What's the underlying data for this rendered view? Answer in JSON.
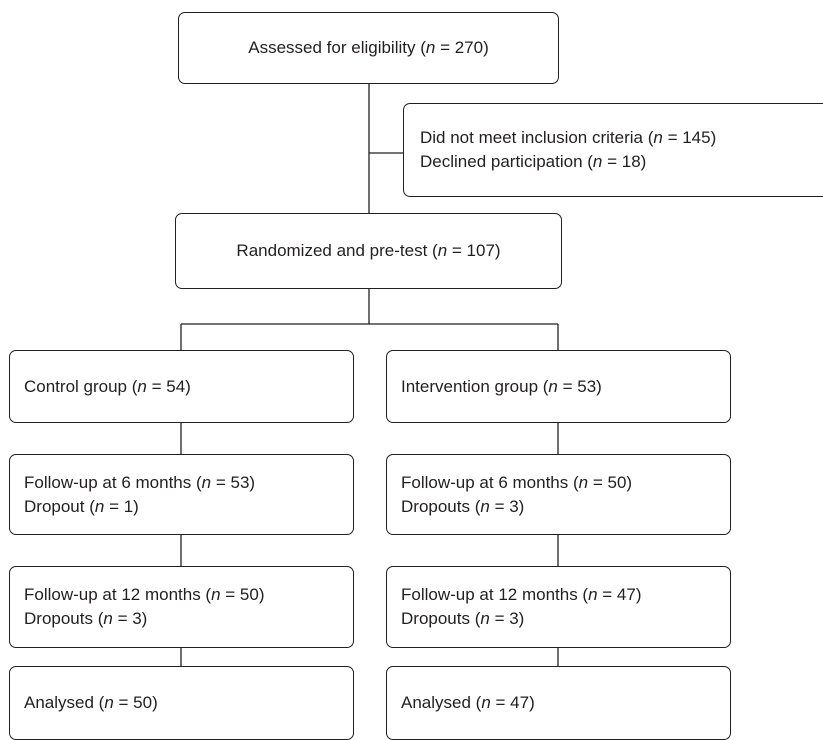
{
  "flowchart": {
    "eligibility": {
      "prefix": "Assessed for eligibility (",
      "n_label": "n",
      "suffix": " = 270)"
    },
    "exclusions": {
      "line1": {
        "prefix": "Did not meet inclusion criteria (",
        "n_label": "n",
        "suffix": " = 145)"
      },
      "line2": {
        "prefix": "Declined participation (",
        "n_label": "n",
        "suffix": " = 18)"
      }
    },
    "randomized": {
      "prefix": "Randomized and pre-test (",
      "n_label": "n",
      "suffix": " = 107)"
    },
    "control": {
      "group": {
        "prefix": "Control group (",
        "n_label": "n",
        "suffix": " = 54)"
      },
      "fu6_line1": {
        "prefix": "Follow-up at 6 months (",
        "n_label": "n",
        "suffix": " = 53)"
      },
      "fu6_line2": {
        "prefix": "Dropout (",
        "n_label": "n",
        "suffix": " = 1)"
      },
      "fu12_line1": {
        "prefix": "Follow-up at 12 months (",
        "n_label": "n",
        "suffix": " = 50)"
      },
      "fu12_line2": {
        "prefix": "Dropouts (",
        "n_label": "n",
        "suffix": " = 3)"
      },
      "analysed": {
        "prefix": "Analysed (",
        "n_label": "n",
        "suffix": " = 50)"
      }
    },
    "intervention": {
      "group": {
        "prefix": "Intervention group (",
        "n_label": "n",
        "suffix": " = 53)"
      },
      "fu6_line1": {
        "prefix": "Follow-up at 6 months (",
        "n_label": "n",
        "suffix": " = 50)"
      },
      "fu6_line2": {
        "prefix": "Dropouts (",
        "n_label": "n",
        "suffix": " = 3)"
      },
      "fu12_line1": {
        "prefix": "Follow-up at 12 months (",
        "n_label": "n",
        "suffix": " = 47)"
      },
      "fu12_line2": {
        "prefix": "Dropouts (",
        "n_label": "n",
        "suffix": " = 3)"
      },
      "analysed": {
        "prefix": "Analysed (",
        "n_label": "n",
        "suffix": " = 47)"
      }
    }
  },
  "colors": {
    "line": "#231f20",
    "text": "#231f20",
    "background": "#ffffff"
  }
}
